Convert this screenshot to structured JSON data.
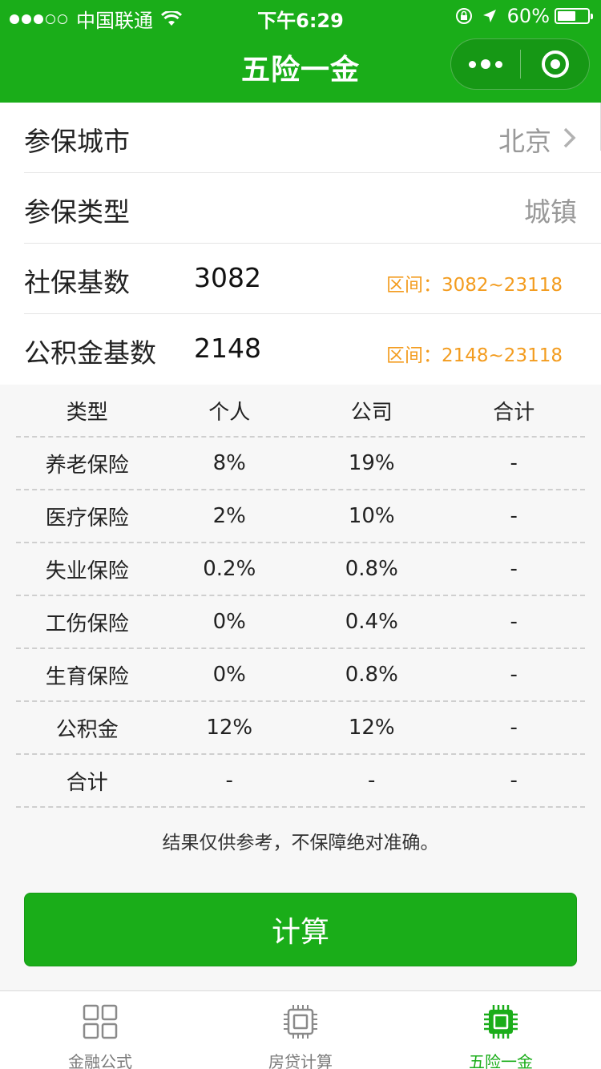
{
  "status": {
    "carrier": "中国联通",
    "time": "下午6:29",
    "battery": "60%"
  },
  "nav": {
    "title": "五险一金"
  },
  "form": {
    "city": {
      "label": "参保城市",
      "value": "北京"
    },
    "type": {
      "label": "参保类型",
      "value": "城镇"
    },
    "social_base": {
      "label": "社保基数",
      "value": "3082",
      "range": "区间：3082~23118"
    },
    "fund_base": {
      "label": "公积金基数",
      "value": "2148",
      "range": "区间：2148~23118"
    }
  },
  "table": {
    "headers": [
      "类型",
      "个人",
      "公司",
      "合计"
    ],
    "rows": [
      [
        "养老保险",
        "8%",
        "19%",
        "-"
      ],
      [
        "医疗保险",
        "2%",
        "10%",
        "-"
      ],
      [
        "失业保险",
        "0.2%",
        "0.8%",
        "-"
      ],
      [
        "工伤保险",
        "0%",
        "0.4%",
        "-"
      ],
      [
        "生育保险",
        "0%",
        "0.8%",
        "-"
      ],
      [
        "公积金",
        "12%",
        "12%",
        "-"
      ],
      [
        "合计",
        "-",
        "-",
        "-"
      ]
    ]
  },
  "note": "结果仅供参考，不保障绝对准确。",
  "calc_button": "计算",
  "tabbar": {
    "items": [
      {
        "label": "金融公式",
        "icon": "grid-icon",
        "active": false
      },
      {
        "label": "房贷计算",
        "icon": "chip-icon",
        "active": false
      },
      {
        "label": "五险一金",
        "icon": "chip-icon",
        "active": true
      }
    ]
  },
  "colors": {
    "brand_green": "#1aad19",
    "range_orange": "#f39c1f"
  }
}
